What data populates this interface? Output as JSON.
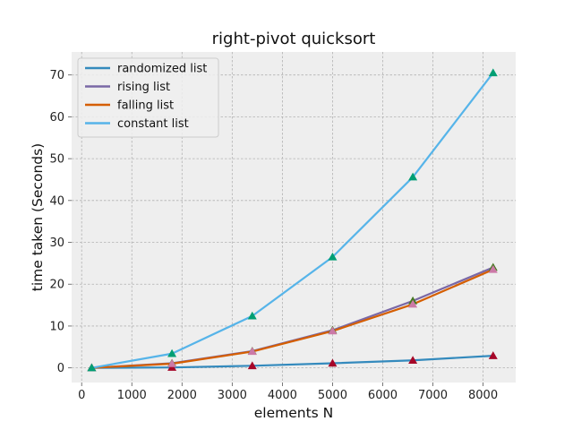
{
  "chart_data": {
    "type": "line",
    "title": "right-pivot quicksort",
    "xlabel": "elements N",
    "ylabel": "time taken (Seconds)",
    "xlim": [
      -200,
      8650
    ],
    "ylim": [
      -3.5,
      75.5
    ],
    "xticks": [
      0,
      1000,
      2000,
      3000,
      4000,
      5000,
      6000,
      7000,
      8000
    ],
    "yticks": [
      0,
      10,
      20,
      30,
      40,
      50,
      60,
      70
    ],
    "grid": true,
    "legend_position": "top-left",
    "x": [
      200,
      1800,
      3400,
      5000,
      6600,
      8200
    ],
    "series": [
      {
        "name": "randomized list",
        "color": "#348abd",
        "marker_color": "#a60628",
        "values": [
          0.0,
          0.1,
          0.5,
          1.1,
          1.8,
          2.9
        ]
      },
      {
        "name": "rising list",
        "color": "#7a68a6",
        "marker_color": "#467821",
        "values": [
          0.0,
          1.1,
          4.0,
          9.0,
          16.0,
          24.0
        ]
      },
      {
        "name": "falling list",
        "color": "#d55e00",
        "marker_color": "#cc79a7",
        "values": [
          0.0,
          1.0,
          3.9,
          8.8,
          15.2,
          23.5
        ]
      },
      {
        "name": "constant list",
        "color": "#56b4e9",
        "marker_color": "#009e73",
        "values": [
          0.0,
          3.4,
          12.4,
          26.5,
          45.6,
          70.5
        ]
      }
    ]
  }
}
